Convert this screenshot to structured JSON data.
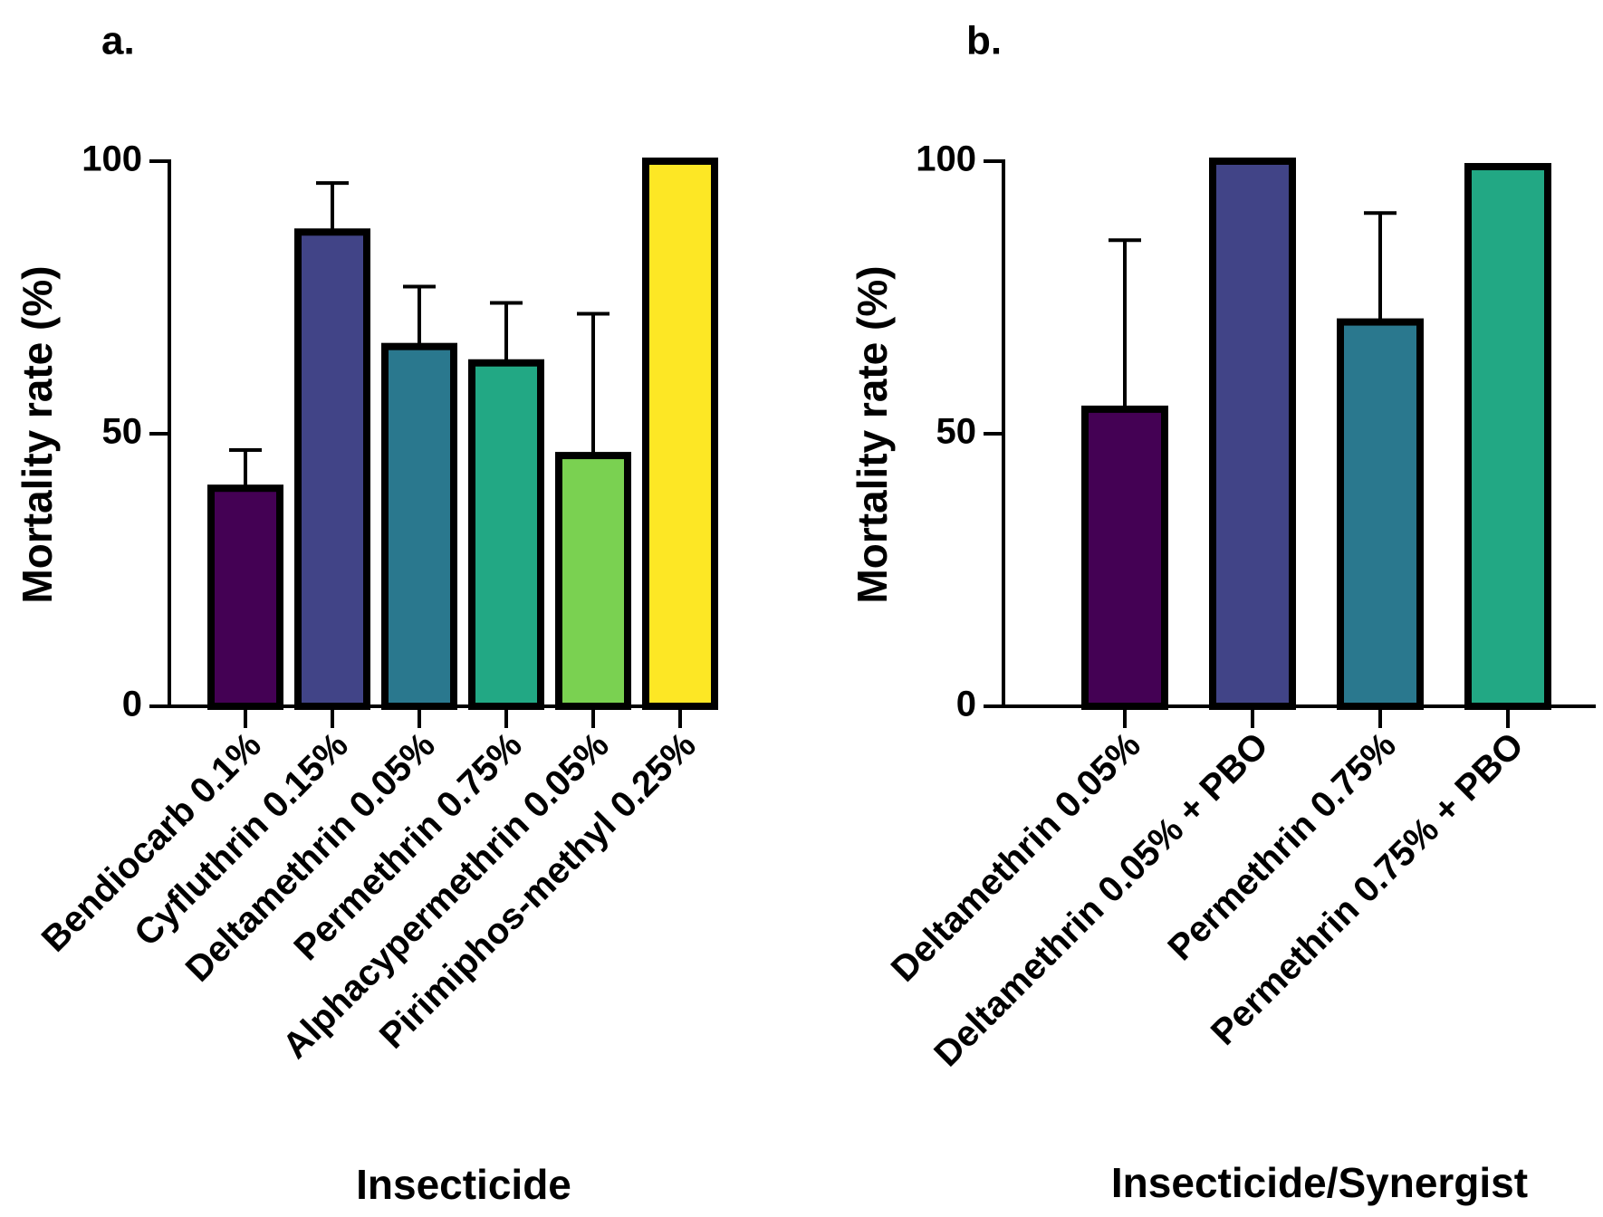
{
  "chart_data": [
    {
      "type": "bar",
      "panel_label": "a.",
      "title": "",
      "xlabel": "Insecticide",
      "ylabel": "Mortality rate (%)",
      "ylim": [
        0,
        100
      ],
      "yticks": [
        "0",
        "50",
        "100"
      ],
      "categories": [
        "Bendiocarb 0.1%",
        "Cyfluthrin 0.15%",
        "Deltamethrin 0.05%",
        "Permethrin 0.75%",
        "Alphacypermethrin 0.05%",
        "Pirimiphos-methyl 0.25%"
      ],
      "values": [
        40,
        87,
        66,
        63,
        46,
        100
      ],
      "errors": [
        7,
        9,
        11,
        11,
        26,
        0
      ],
      "colors": [
        "#440154",
        "#414487",
        "#2a788e",
        "#22a884",
        "#7ad151",
        "#fde725"
      ]
    },
    {
      "type": "bar",
      "panel_label": "b.",
      "title": "",
      "xlabel": "Insecticide/Synergist",
      "ylabel": "Mortality rate (%)",
      "ylim": [
        0,
        100
      ],
      "yticks": [
        "0",
        "50",
        "100"
      ],
      "categories": [
        "Deltamethrin 0.05%",
        "Deltamethrin 0.05% + PBO",
        "Permethrin 0.75%",
        "Permethrin 0.75% + PBO"
      ],
      "values": [
        54.5,
        100,
        70.5,
        99
      ],
      "errors": [
        31,
        0,
        20,
        0
      ],
      "colors": [
        "#440154",
        "#414487",
        "#2a788e",
        "#22a884"
      ]
    }
  ]
}
